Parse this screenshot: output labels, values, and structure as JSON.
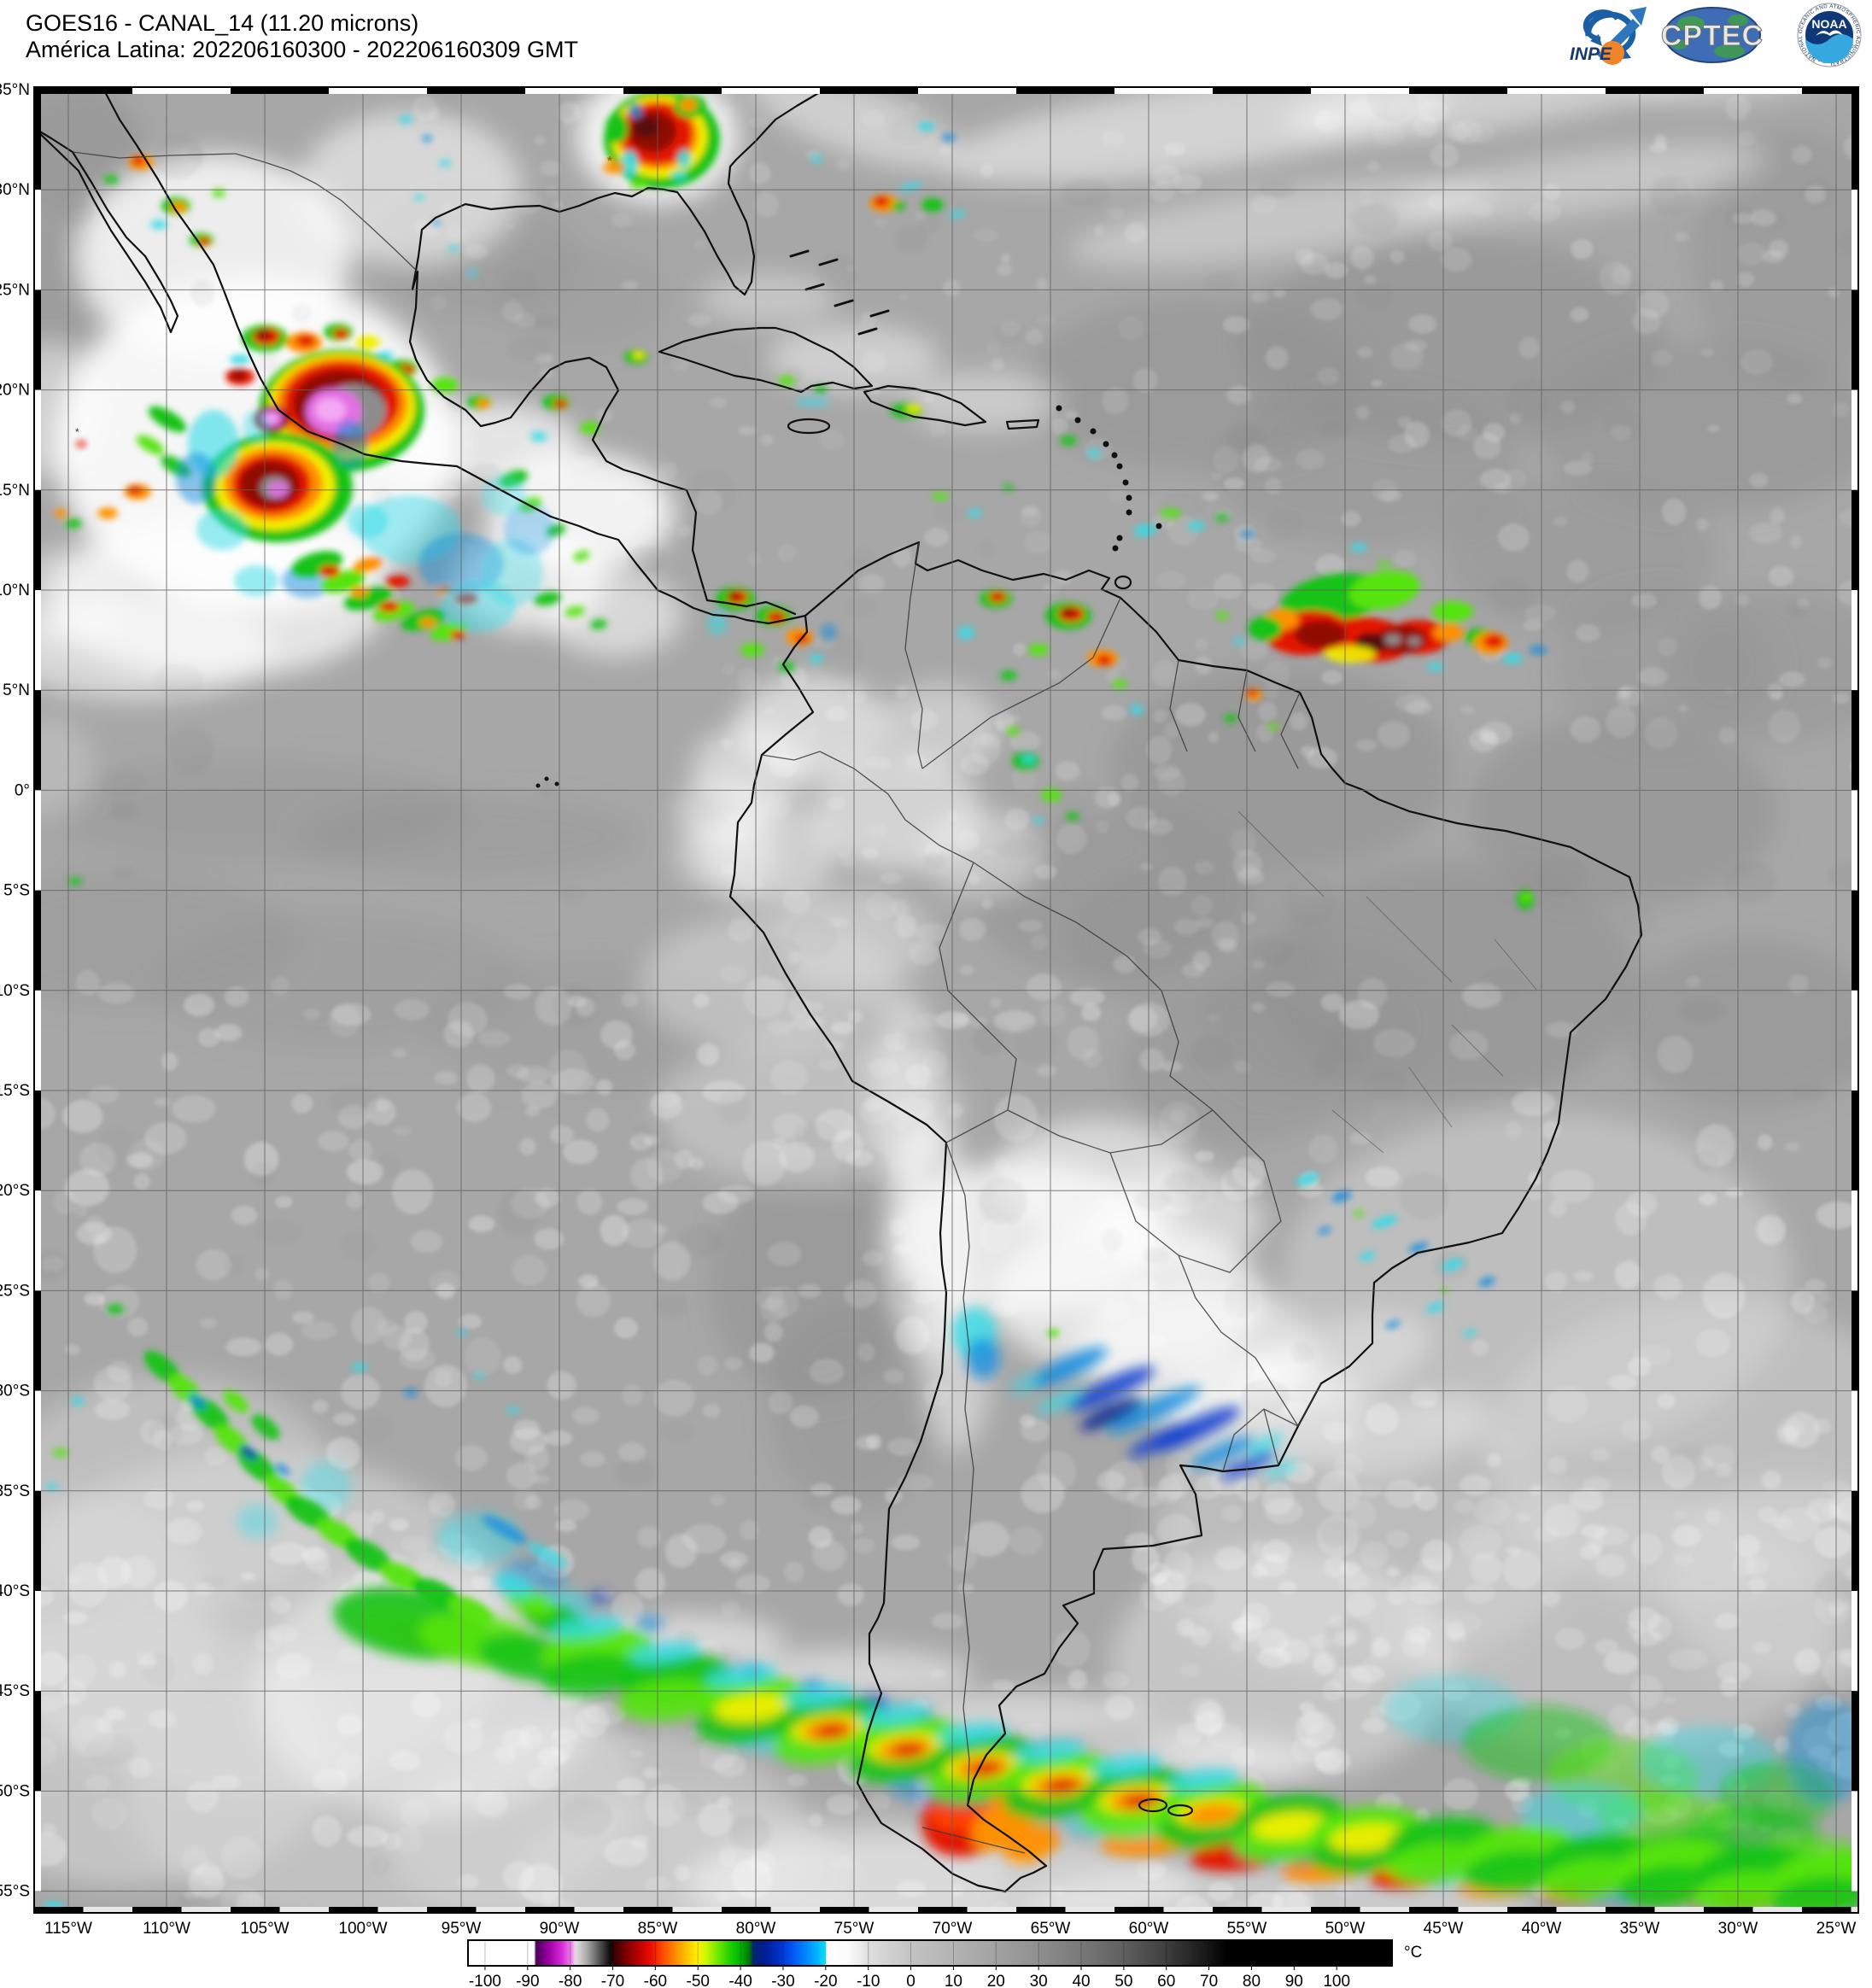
{
  "header": {
    "line1": "GOES16 - CANAL_14 (11.20 microns)",
    "line2": "América Latina: 202206160300 - 202206160309 GMT"
  },
  "logos": {
    "inpe": "INPE",
    "cptec": "CPTEC",
    "noaa": "NOAA",
    "noaa_ring_top": "NATIONAL OCEANIC AND ATMOSPHERIC ADMINISTRATION",
    "noaa_ring_bottom": "U.S. DEPARTMENT OF COMMERCE"
  },
  "map": {
    "lat_ticks": [
      {
        "label": "35°N",
        "value": 35
      },
      {
        "label": "30°N",
        "value": 30
      },
      {
        "label": "25°N",
        "value": 25
      },
      {
        "label": "20°N",
        "value": 20
      },
      {
        "label": "15°N",
        "value": 15
      },
      {
        "label": "10°N",
        "value": 10
      },
      {
        "label": "5°N",
        "value": 5
      },
      {
        "label": "0°",
        "value": 0
      },
      {
        "label": "5°S",
        "value": -5
      },
      {
        "label": "10°S",
        "value": -10
      },
      {
        "label": "15°S",
        "value": -15
      },
      {
        "label": "20°S",
        "value": -20
      },
      {
        "label": "25°S",
        "value": -25
      },
      {
        "label": "30°S",
        "value": -30
      },
      {
        "label": "35°S",
        "value": -35
      },
      {
        "label": "40°S",
        "value": -40
      },
      {
        "label": "45°S",
        "value": -45
      },
      {
        "label": "50°S",
        "value": -50
      },
      {
        "label": "55°S",
        "value": -55
      }
    ],
    "lon_ticks": [
      {
        "label": "115°W",
        "value": -115
      },
      {
        "label": "110°W",
        "value": -110
      },
      {
        "label": "105°W",
        "value": -105
      },
      {
        "label": "100°W",
        "value": -100
      },
      {
        "label": "95°W",
        "value": -95
      },
      {
        "label": "90°W",
        "value": -90
      },
      {
        "label": "85°W",
        "value": -85
      },
      {
        "label": "80°W",
        "value": -80
      },
      {
        "label": "75°W",
        "value": -75
      },
      {
        "label": "70°W",
        "value": -70
      },
      {
        "label": "65°W",
        "value": -65
      },
      {
        "label": "60°W",
        "value": -60
      },
      {
        "label": "55°W",
        "value": -55
      },
      {
        "label": "50°W",
        "value": -50
      },
      {
        "label": "45°W",
        "value": -45
      },
      {
        "label": "40°W",
        "value": -40
      },
      {
        "label": "35°W",
        "value": -35
      },
      {
        "label": "30°W",
        "value": -30
      },
      {
        "label": "25°W",
        "value": -25
      }
    ]
  },
  "colorbar": {
    "unit": "°C",
    "min": -104,
    "max": 113,
    "ticks": [
      -100,
      -90,
      -80,
      -70,
      -60,
      -50,
      -40,
      -30,
      -20,
      -10,
      0,
      10,
      20,
      30,
      40,
      50,
      60,
      70,
      80,
      90,
      100
    ],
    "stops": [
      [
        -104,
        "#ffffff"
      ],
      [
        -88.5,
        "#ffffff"
      ],
      [
        -88,
        "#4d0057"
      ],
      [
        -85,
        "#9b00a5"
      ],
      [
        -82,
        "#d629d6"
      ],
      [
        -79.5,
        "#ef8fef"
      ],
      [
        -79,
        "#efc6ef"
      ],
      [
        -78.5,
        "#dcdcdc"
      ],
      [
        -76,
        "#a8a8a8"
      ],
      [
        -73,
        "#4f4f4f"
      ],
      [
        -70.6,
        "#0c0c0c"
      ],
      [
        -70,
        "#2e0000"
      ],
      [
        -67,
        "#7a0000"
      ],
      [
        -64,
        "#b80000"
      ],
      [
        -61,
        "#ee0e00"
      ],
      [
        -58,
        "#ff5000"
      ],
      [
        -55,
        "#ff9300"
      ],
      [
        -52,
        "#ffcf00"
      ],
      [
        -50,
        "#fdf300"
      ],
      [
        -48,
        "#c8f600"
      ],
      [
        -45,
        "#66e600"
      ],
      [
        -42,
        "#14cc00"
      ],
      [
        -40,
        "#00b400"
      ],
      [
        -38,
        "#007a00"
      ],
      [
        -37,
        "#00246e"
      ],
      [
        -34,
        "#001e96"
      ],
      [
        -31,
        "#0030c8"
      ],
      [
        -28,
        "#0053f0"
      ],
      [
        -25,
        "#0080ff"
      ],
      [
        -22,
        "#00b4ff"
      ],
      [
        -20.2,
        "#00e0f0"
      ],
      [
        -19.8,
        "#ffffff"
      ],
      [
        -15,
        "#fbfbfb"
      ],
      [
        -12,
        "#ececec"
      ],
      [
        -10,
        "#dedede"
      ],
      [
        0,
        "#c3c3c3"
      ],
      [
        10,
        "#b3b3b3"
      ],
      [
        20,
        "#a2a2a2"
      ],
      [
        30,
        "#8f8f8f"
      ],
      [
        40,
        "#797979"
      ],
      [
        50,
        "#5f5f5f"
      ],
      [
        60,
        "#3e3e3e"
      ],
      [
        70,
        "#151515"
      ],
      [
        74,
        "#000000"
      ],
      [
        113,
        "#000000"
      ]
    ]
  },
  "colors": {
    "ocean_base": "#a7a7a7",
    "coastline": "#101010",
    "country_border": "#3a3a3a",
    "grid_line": "#5f5f5f",
    "frame": "#000000",
    "title_text": "#000000"
  }
}
